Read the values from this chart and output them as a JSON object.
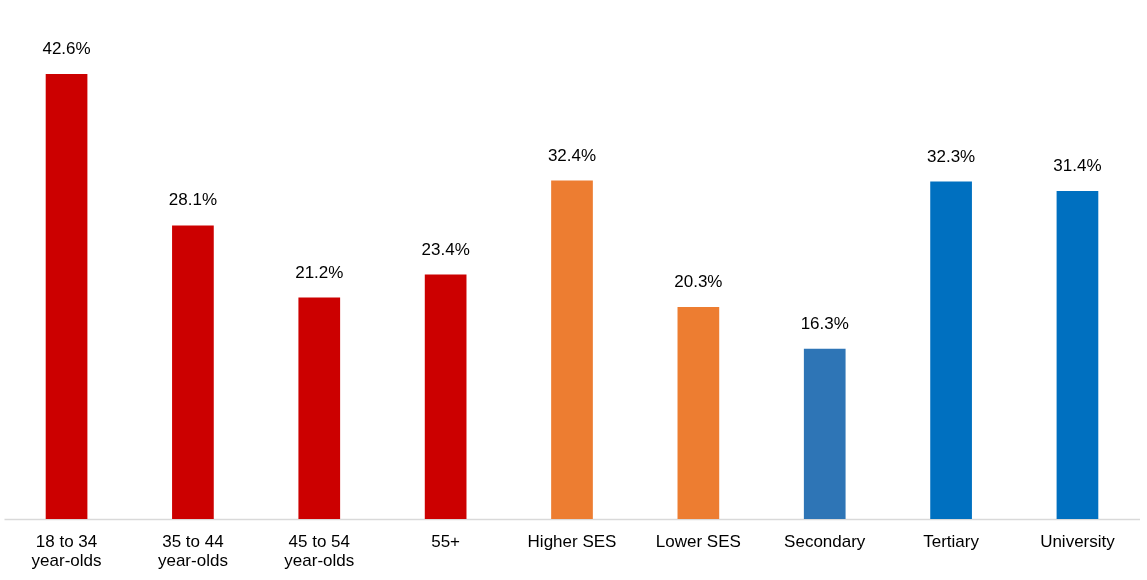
{
  "chart_data": {
    "type": "bar",
    "categories": [
      "18 to 34\nyear-olds",
      "35 to 44\nyear-olds",
      "45 to 54\nyear-olds",
      "55+",
      "Higher SES",
      "Lower SES",
      "Secondary",
      "Tertiary",
      "University"
    ],
    "values": [
      42.6,
      28.1,
      21.2,
      23.4,
      32.4,
      20.3,
      16.3,
      32.3,
      31.4
    ],
    "value_labels": [
      "42.6%",
      "28.1%",
      "21.2%",
      "23.4%",
      "32.4%",
      "20.3%",
      "16.3%",
      "32.3%",
      "31.4%"
    ],
    "colors": [
      "#cc0000",
      "#cc0000",
      "#cc0000",
      "#cc0000",
      "#ed7d31",
      "#ed7d31",
      "#2e75b6",
      "#0070c0",
      "#0070c0"
    ],
    "grid": false,
    "legend": false
  }
}
